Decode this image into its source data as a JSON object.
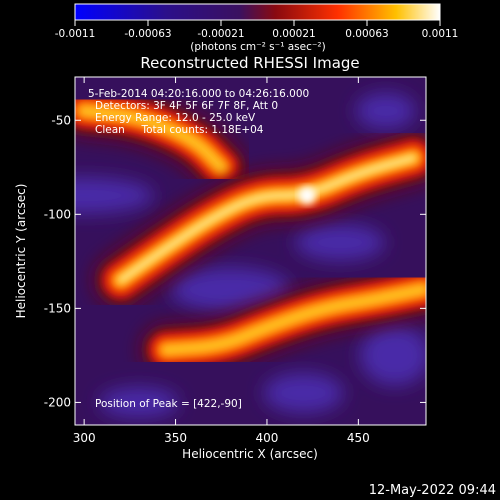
{
  "chart_data": {
    "type": "heatmap",
    "title": "Reconstructed RHESSI Image",
    "xlabel": "Heliocentric X (arcsec)",
    "ylabel": "Heliocentric Y (arcsec)",
    "xlim": [
      295,
      487
    ],
    "ylim": [
      -212,
      -27
    ],
    "x_ticks": [
      300,
      350,
      400,
      450
    ],
    "y_ticks": [
      -50,
      -100,
      -150,
      -200
    ],
    "colorbar": {
      "min": -0.0011,
      "max": 0.0011,
      "ticks": [
        "-0.0011",
        "-0.00063",
        "-0.00021",
        "0.00021",
        "0.00063",
        "0.0011"
      ],
      "unit_label": "(photons cm⁻² s⁻¹ asec⁻²)",
      "colormap": [
        "#0000ff",
        "#2b0f8a",
        "#3a1060",
        "#8a0a10",
        "#ff3000",
        "#ffc000",
        "#ffffff"
      ]
    },
    "overlay_text": [
      "5-Feb-2014 04:20:16.000 to 04:26:16.000",
      "Detectors: 3F 4F 5F 6F 7F 8F, Att 0",
      "Energy Range: 12.0 - 25.0 keV",
      "Clean     Total counts: 1.18E+04"
    ],
    "peak_label": "Position of Peak = [422,-90]",
    "peak": [
      422,
      -90
    ],
    "emission_ridges": [
      {
        "path": [
          [
            300,
            -45
          ],
          [
            330,
            -48
          ],
          [
            360,
            -60
          ],
          [
            375,
            -75
          ]
        ],
        "intensity": 0.75
      },
      {
        "path": [
          [
            320,
            -135
          ],
          [
            345,
            -118
          ],
          [
            370,
            -102
          ],
          [
            395,
            -90
          ],
          [
            422,
            -90
          ],
          [
            450,
            -78
          ],
          [
            480,
            -70
          ]
        ],
        "intensity": 1.0
      },
      {
        "path": [
          [
            345,
            -172
          ],
          [
            375,
            -170
          ],
          [
            400,
            -160
          ],
          [
            430,
            -150
          ],
          [
            460,
            -145
          ],
          [
            485,
            -140
          ]
        ],
        "intensity": 0.8
      }
    ]
  },
  "footer": {
    "timestamp": "12-May-2022 09:44"
  }
}
